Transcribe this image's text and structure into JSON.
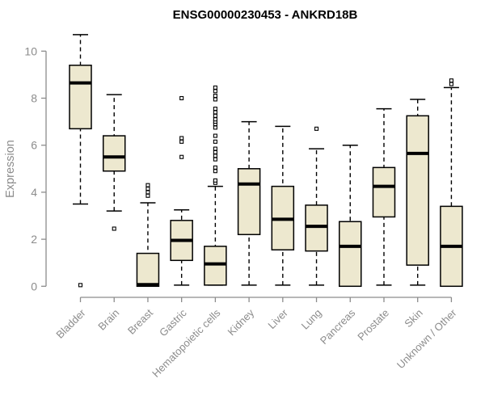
{
  "chart_data": {
    "type": "boxplot",
    "title": "ENSG00000230453 - ANKRD18B",
    "xlabel": "",
    "ylabel": "Expression",
    "categories": [
      "Bladder",
      "Brain",
      "Breast",
      "Gastric",
      "Hematopoietic cells",
      "Kidney",
      "Liver",
      "Lung",
      "Pancreas",
      "Prostate",
      "Skin",
      "Unknown / Other"
    ],
    "yticks": [
      0,
      2,
      4,
      6,
      8,
      10
    ],
    "ylim": [
      0,
      10.7
    ],
    "grid": false,
    "legend": "none",
    "colors": {
      "box_fill": "#EDE8CF",
      "box_border": "#000000",
      "median": "#000000",
      "whisker": "#000000",
      "outlier_fill": "#ffffff",
      "axis": "#8C8C8C",
      "title": "#000000",
      "background": "#FFFFFF"
    },
    "series": [
      {
        "category": "Bladder",
        "whisker_low": 3.5,
        "q1": 6.7,
        "median": 8.65,
        "q3": 9.4,
        "whisker_high": 10.7,
        "outliers": [
          0.05
        ]
      },
      {
        "category": "Brain",
        "whisker_low": 3.2,
        "q1": 4.9,
        "median": 5.5,
        "q3": 6.4,
        "whisker_high": 8.15,
        "outliers": [
          2.45
        ]
      },
      {
        "category": "Breast",
        "whisker_low": 0,
        "q1": 0,
        "median": 0.07,
        "q3": 1.4,
        "whisker_high": 3.55,
        "outliers": [
          3.85,
          4.0,
          4.15,
          4.3
        ]
      },
      {
        "category": "Gastric",
        "whisker_low": 0.05,
        "q1": 1.1,
        "median": 1.95,
        "q3": 2.8,
        "whisker_high": 3.25,
        "outliers": [
          5.5,
          6.15,
          6.3,
          8.0
        ]
      },
      {
        "category": "Hematopoietic cells",
        "whisker_low": 0.05,
        "q1": 0.05,
        "median": 0.95,
        "q3": 1.7,
        "whisker_high": 4.25,
        "outliers": [
          4.4,
          4.5,
          4.9,
          5.05,
          5.4,
          5.55,
          5.7,
          5.85,
          6.15,
          6.4,
          6.75,
          6.9,
          7.0,
          7.1,
          7.25,
          7.4,
          7.55,
          7.95,
          8.1,
          8.3,
          8.45
        ]
      },
      {
        "category": "Kidney",
        "whisker_low": 0.05,
        "q1": 2.2,
        "median": 4.35,
        "q3": 5.0,
        "whisker_high": 7.0,
        "outliers": []
      },
      {
        "category": "Liver",
        "whisker_low": 0.05,
        "q1": 1.55,
        "median": 2.85,
        "q3": 4.25,
        "whisker_high": 6.8,
        "outliers": []
      },
      {
        "category": "Lung",
        "whisker_low": 0.05,
        "q1": 1.5,
        "median": 2.55,
        "q3": 3.45,
        "whisker_high": 5.85,
        "outliers": [
          6.7
        ]
      },
      {
        "category": "Pancreas",
        "whisker_low": 0,
        "q1": 0,
        "median": 1.7,
        "q3": 2.75,
        "whisker_high": 6.0,
        "outliers": []
      },
      {
        "category": "Prostate",
        "whisker_low": 0.05,
        "q1": 2.95,
        "median": 4.25,
        "q3": 5.05,
        "whisker_high": 7.55,
        "outliers": []
      },
      {
        "category": "Skin",
        "whisker_low": 0.05,
        "q1": 0.9,
        "median": 5.65,
        "q3": 7.25,
        "whisker_high": 7.95,
        "outliers": []
      },
      {
        "category": "Unknown / Other",
        "whisker_low": 0,
        "q1": 0,
        "median": 1.7,
        "q3": 3.4,
        "whisker_high": 8.45,
        "outliers": [
          8.6,
          8.75
        ]
      }
    ]
  }
}
